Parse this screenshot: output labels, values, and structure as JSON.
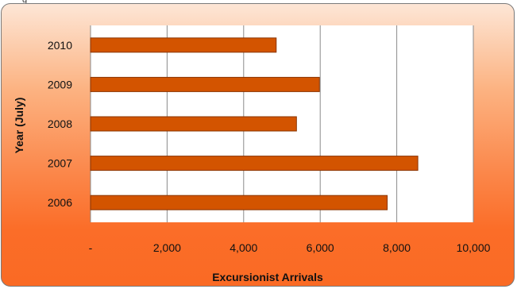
{
  "header": {
    "fragment": "g"
  },
  "chart_data": {
    "type": "bar",
    "orientation": "horizontal",
    "categories": [
      "2010",
      "2009",
      "2008",
      "2007",
      "2006"
    ],
    "values": [
      4850,
      5980,
      5380,
      8550,
      7750
    ],
    "xlabel": "Excursionist Arrivals",
    "ylabel": "Year (July)",
    "xlim": [
      0,
      10000
    ],
    "x_ticks": [
      "-",
      "2,000",
      "4,000",
      "6,000",
      "8,000",
      "10,000"
    ],
    "grid": true,
    "legend": false,
    "colors": {
      "bar": "#d35400",
      "bar_edge": "#8a3400",
      "gridline": "#8a8a8a",
      "plot_bg": "#ffffff"
    }
  }
}
